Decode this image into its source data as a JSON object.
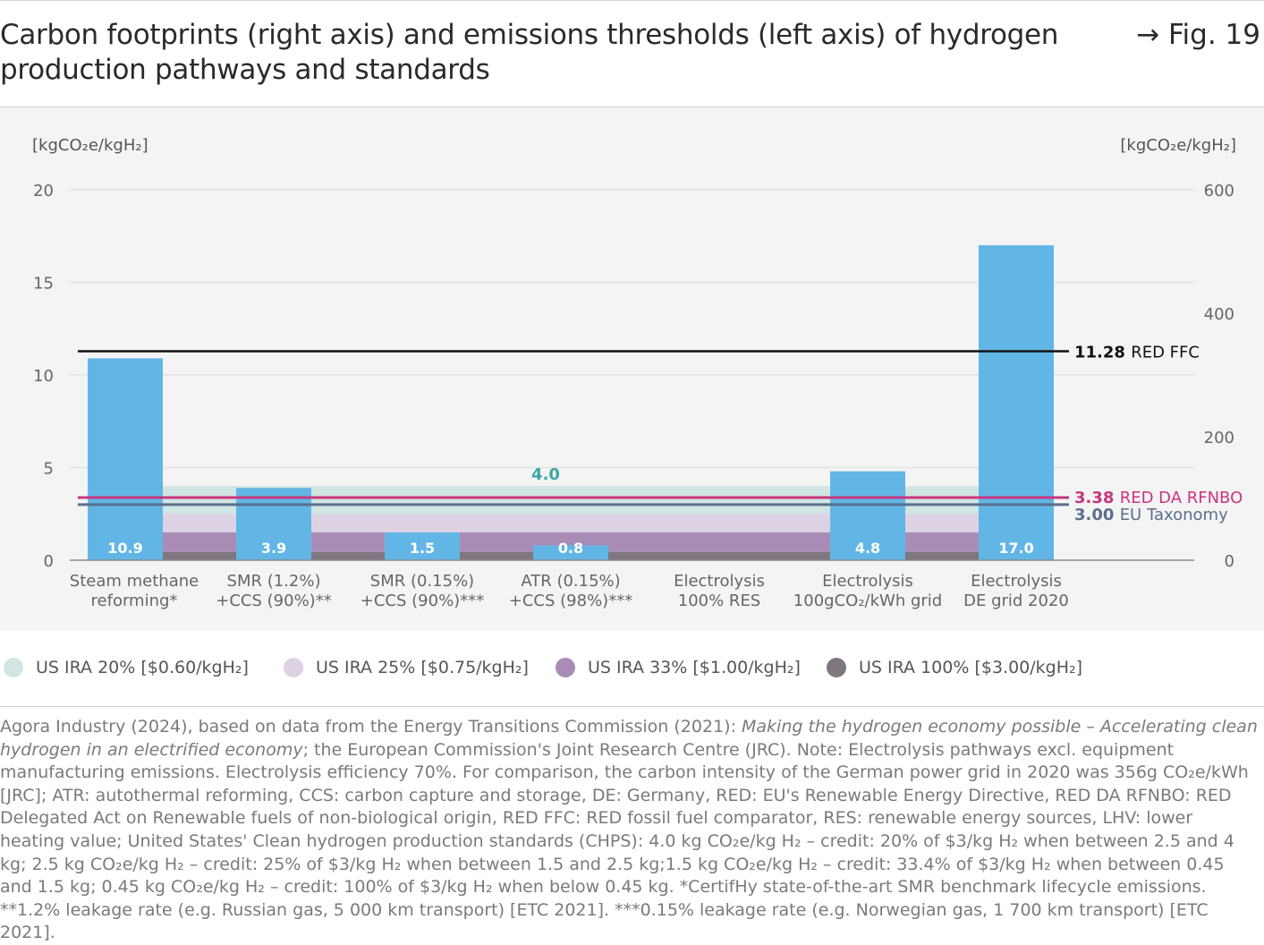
{
  "header": {
    "title": "Carbon footprints (right axis) and emissions thresholds (left axis) of hydrogen production pathways and standards",
    "fig_label": "→ Fig. 19"
  },
  "chart_data": {
    "type": "bar",
    "left_axis": {
      "unit": "[kgCO₂e/kgH₂]",
      "range": [
        0,
        20
      ],
      "ticks": [
        "0",
        "5",
        "10",
        "15",
        "20"
      ]
    },
    "right_axis": {
      "unit": "[kgCO₂e/kgH₂]",
      "range": [
        0,
        600
      ],
      "ticks": [
        "0",
        "200",
        "400",
        "600"
      ]
    },
    "categories": [
      [
        "Steam methane",
        "reforming*"
      ],
      [
        "SMR (1.2%)",
        "+CCS (90%)**"
      ],
      [
        "SMR (0.15%)",
        "+CCS (90%)***"
      ],
      [
        "ATR (0.15%)",
        "+CCS (98%)***"
      ],
      [
        "Electrolysis",
        "100% RES"
      ],
      [
        "Electrolysis",
        "100gCO₂/kWh grid"
      ],
      [
        "Electrolysis",
        "DE grid 2020"
      ]
    ],
    "values": [
      10.9,
      3.9,
      1.5,
      0.8,
      0,
      4.8,
      17.0
    ],
    "value_labels": [
      "10.9",
      "3.9",
      "1.5",
      "0.8",
      "",
      "4.8",
      "17.0"
    ],
    "bar_color": "#62b6e6",
    "thresholds": [
      {
        "value": 11.28,
        "value_label": "11.28",
        "name": "RED FFC",
        "color": "#111111"
      },
      {
        "value": 3.38,
        "value_label": "3.38",
        "name": "RED DA RFNBO",
        "color": "#c9357f"
      },
      {
        "value": 3.0,
        "value_label": "3.00",
        "name": "EU Taxonomy",
        "color": "#5b6e8c"
      }
    ],
    "bands": [
      {
        "from": 2.5,
        "to": 4.0,
        "color": "#cfe6e3",
        "legend": "US IRA 20% [$0.60/kgH₂]"
      },
      {
        "from": 1.5,
        "to": 2.5,
        "color": "#ddd1e4",
        "legend": "US IRA 25% [$0.75/kgH₂]"
      },
      {
        "from": 0.45,
        "to": 1.5,
        "color": "#a98cb6",
        "legend": "US IRA 33% [$1.00/kgH₂]"
      },
      {
        "from": 0,
        "to": 0.45,
        "color": "#7f7680",
        "legend": "US IRA 100% [$3.00/kgH₂]"
      }
    ],
    "band_annotation": {
      "label": "4.0",
      "color": "#3aa7a6"
    },
    "grid": true
  },
  "legend": {
    "items": [
      {
        "label": "US IRA 20% [$0.60/kgH₂]",
        "color": "#cfe6e3"
      },
      {
        "label": "US IRA 25% [$0.75/kgH₂]",
        "color": "#ddd1e4"
      },
      {
        "label": "US IRA 33% [$1.00/kgH₂]",
        "color": "#a98cb6"
      },
      {
        "label": "US IRA 100% [$3.00/kgH₂]",
        "color": "#7f7680"
      }
    ]
  },
  "source": {
    "part1": "Agora Industry (2024), based on data from the Energy Transitions Commission (2021): ",
    "italic": "Making the hydrogen economy possible – Accelerating clean hydrogen in an electrified economy",
    "part2": "; the European Commission's Joint Research Centre (JRC). Note: Electrolysis pathways excl. equipment manufacturing emissions. Electrolysis efficiency 70%. For comparison, the carbon intensity of the German power grid in 2020 was 356g CO₂e/kWh [JRC]; ATR: autothermal reforming, CCS: carbon capture and storage, DE: Germany, RED: EU's Renewable Energy Directive, RED DA RFNBO: RED Delegated Act on Renewable fuels of non-biological origin, RED FFC: RED fossil fuel comparator, RES: renewable energy sources, LHV: lower heating value; United States' Clean hydrogen production standards (CHPS): 4.0 kg CO₂e/kg H₂ – credit: 20% of $3/kg H₂ when between 2.5 and 4 kg; 2.5 kg CO₂e/kg H₂ – credit: 25% of $3/kg H₂ when between 1.5 and 2.5 kg;1.5 kg CO₂e/kg H₂ – credit: 33.4% of $3/kg H₂ when between 0.45 and 1.5 kg; 0.45 kg CO₂e/kg H₂ – credit: 100% of $3/kg H₂ when below 0.45 kg. *CertifHy state-of-the-art SMR benchmark lifecycle emissions. **1.2% leakage rate (e.g. Russian gas, 5 000 km transport) [ETC 2021]. ***0.15% leakage rate (e.g. Norwegian gas, 1 700 km transport) [ETC 2021]."
  }
}
